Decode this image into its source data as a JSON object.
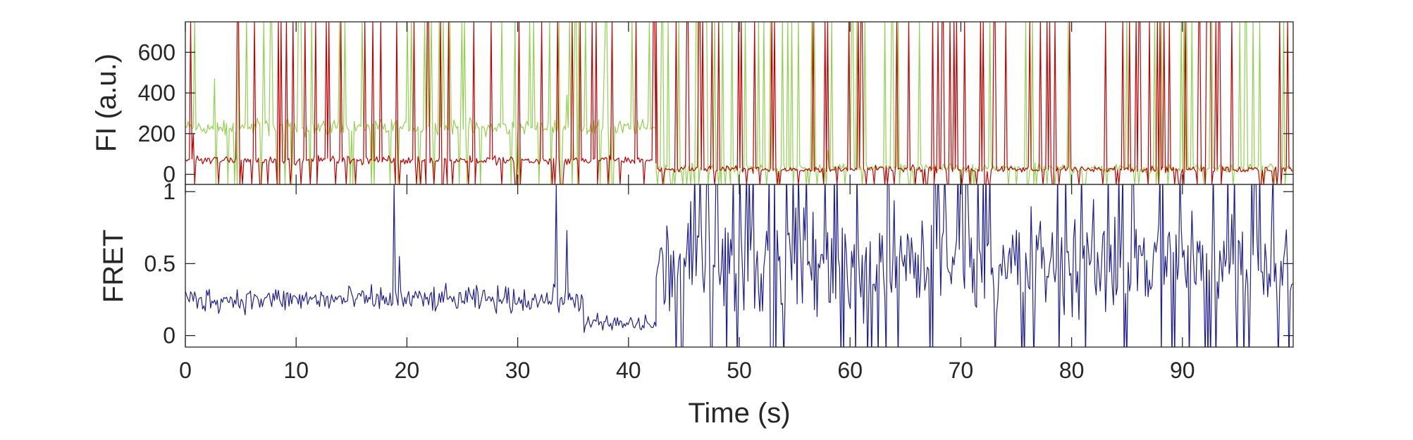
{
  "chart_data": [
    {
      "id": "fluorescence",
      "type": "line",
      "ylabel": "FI (a.u.)",
      "xlim": [
        0,
        100
      ],
      "ylim": [
        -50,
        750
      ],
      "yticks": [
        0,
        200,
        400,
        600
      ],
      "y_tick_labels": [
        "0",
        "200",
        "400",
        "600"
      ],
      "grid": false,
      "series": [
        {
          "color": "#92d050",
          "segments": [
            {
              "x_start": 0,
              "x_end": 42.5,
              "mean": 230,
              "amplitude": 60
            },
            {
              "x_start": 42.5,
              "x_end": 100,
              "mean": 30,
              "amplitude": 32
            }
          ],
          "spikes": [
            [
              2.7,
              470
            ],
            [
              37.8,
              500
            ],
            [
              34.5,
              390
            ],
            [
              58,
              120
            ]
          ]
        },
        {
          "color": "#c00000",
          "segments": [
            {
              "x_start": 0,
              "x_end": 42.5,
              "mean": 70,
              "amplitude": 30
            },
            {
              "x_start": 42.5,
              "x_end": 100,
              "mean": 25,
              "amplitude": 24
            }
          ],
          "spikes": [
            [
              0.7,
              200
            ]
          ]
        }
      ]
    },
    {
      "id": "fret",
      "type": "line",
      "ylabel": "FRET",
      "xlabel": "Time (s)",
      "xlim": [
        0,
        100
      ],
      "ylim": [
        -0.08,
        1.05
      ],
      "xticks": [
        0,
        10,
        20,
        30,
        40,
        50,
        60,
        70,
        80,
        90
      ],
      "x_tick_labels": [
        "0",
        "10",
        "20",
        "30",
        "40",
        "50",
        "60",
        "70",
        "80",
        "90"
      ],
      "yticks": [
        0,
        0.5,
        1
      ],
      "y_tick_labels": [
        "0",
        "0.5",
        "1"
      ],
      "grid": false,
      "series": [
        {
          "color": "#1f1f8f",
          "segments": [
            {
              "x_start": 0,
              "x_end": 36,
              "mean": 0.25,
              "amplitude": 0.13
            },
            {
              "x_start": 36,
              "x_end": 42.5,
              "mean": 0.08,
              "amplitude": 0.1
            },
            {
              "x_start": 42.5,
              "x_end": 100,
              "mean": 0.5,
              "amplitude": 0.55
            }
          ],
          "spikes": [
            [
              18.8,
              1.05
            ],
            [
              33.5,
              1.05
            ],
            [
              34.5,
              0.73
            ],
            [
              19.3,
              0.55
            ]
          ]
        }
      ]
    }
  ]
}
